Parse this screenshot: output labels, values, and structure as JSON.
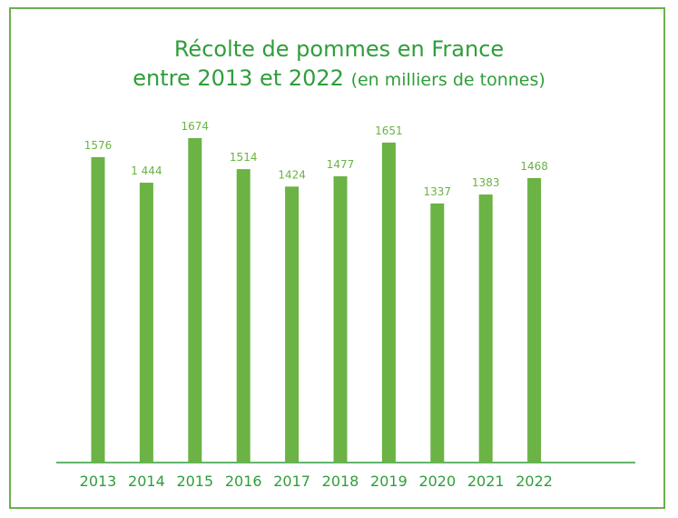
{
  "chart_data": {
    "type": "bar",
    "title_line1": "Récolte de pommes en France",
    "title_line2_main": "entre 2013 et 2022",
    "title_line2_small": "(en milliers de tonnes)",
    "categories": [
      "2013",
      "2014",
      "2015",
      "2016",
      "2017",
      "2018",
      "2019",
      "2020",
      "2021",
      "2022"
    ],
    "values": [
      1576,
      1444,
      1674,
      1514,
      1424,
      1477,
      1651,
      1337,
      1383,
      1468
    ],
    "value_labels": [
      "1576",
      "1 444",
      "1674",
      "1514",
      "1424",
      "1477",
      "1651",
      "1337",
      "1383",
      "1468"
    ],
    "ylim": [
      0,
      1674
    ],
    "grid": false,
    "colors": {
      "bar": "#6ab344",
      "text": "#2f9e3a",
      "frame": "#6ab04c"
    }
  }
}
